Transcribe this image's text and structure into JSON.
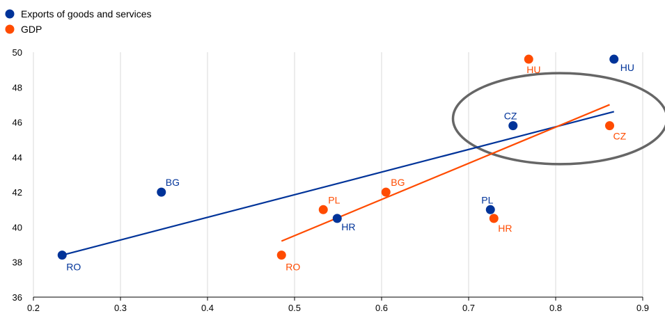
{
  "chart_data": {
    "type": "scatter",
    "xlim": [
      0.2,
      0.9
    ],
    "ylim": [
      36,
      50
    ],
    "x_ticks": [
      0.2,
      0.3,
      0.4,
      0.5,
      0.6,
      0.7,
      0.8,
      0.9
    ],
    "y_ticks": [
      36,
      38,
      40,
      42,
      44,
      46,
      48,
      50
    ],
    "x_tick_labels": [
      "0.2",
      "0.3",
      "0.4",
      "0.5",
      "0.6",
      "0.7",
      "0.8",
      "0.9"
    ],
    "y_tick_labels": [
      "36",
      "38",
      "40",
      "42",
      "44",
      "46",
      "48",
      "50"
    ],
    "grid": "vertical",
    "legend_position": "top-left",
    "series": [
      {
        "name": "Exports of goods and services",
        "color": "#003399",
        "points": [
          {
            "label": "RO",
            "x": 0.233,
            "y": 38.4
          },
          {
            "label": "BG",
            "x": 0.347,
            "y": 42.0
          },
          {
            "label": "HR",
            "x": 0.549,
            "y": 40.5
          },
          {
            "label": "PL",
            "x": 0.725,
            "y": 41.0
          },
          {
            "label": "CZ",
            "x": 0.751,
            "y": 45.8
          },
          {
            "label": "HU",
            "x": 0.867,
            "y": 49.6
          }
        ],
        "trendline": {
          "x": [
            0.233,
            0.867
          ],
          "y": [
            38.4,
            46.6
          ]
        }
      },
      {
        "name": "GDP",
        "color": "#ff4b00",
        "points": [
          {
            "label": "RO",
            "x": 0.485,
            "y": 38.4
          },
          {
            "label": "PL",
            "x": 0.533,
            "y": 41.0
          },
          {
            "label": "BG",
            "x": 0.605,
            "y": 42.0
          },
          {
            "label": "HR",
            "x": 0.729,
            "y": 40.5
          },
          {
            "label": "HU",
            "x": 0.769,
            "y": 49.6
          },
          {
            "label": "CZ",
            "x": 0.862,
            "y": 45.8
          }
        ],
        "trendline": {
          "x": [
            0.485,
            0.862
          ],
          "y": [
            39.2,
            47.0
          ]
        }
      }
    ],
    "annotation_ellipse": {
      "cx": 0.805,
      "cy": 46.2,
      "rx": 0.123,
      "ry": 2.6,
      "color": "#666666"
    }
  }
}
